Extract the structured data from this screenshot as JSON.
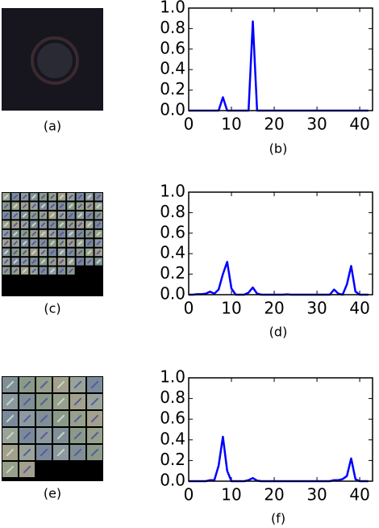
{
  "images": [
    {
      "caption": "(a)"
    },
    {
      "caption": "(c)"
    },
    {
      "caption": "(e)"
    }
  ],
  "chart_data": [
    {
      "type": "line",
      "caption": "(b)",
      "x": [
        0,
        1,
        2,
        3,
        4,
        5,
        6,
        7,
        8,
        9,
        10,
        11,
        12,
        13,
        14,
        15,
        16,
        17,
        18,
        19,
        20,
        21,
        22,
        23,
        24,
        25,
        26,
        27,
        28,
        29,
        30,
        31,
        32,
        33,
        34,
        35,
        36,
        37,
        38,
        39,
        40,
        41,
        42
      ],
      "series": [
        {
          "color": "#0000ff",
          "values": [
            0,
            0,
            0,
            0,
            0,
            0,
            0,
            0,
            0.13,
            0,
            0,
            0,
            0,
            0,
            0,
            0.87,
            0,
            0,
            0,
            0,
            0,
            0,
            0,
            0,
            0,
            0,
            0,
            0,
            0,
            0,
            0,
            0,
            0,
            0,
            0,
            0,
            0,
            0,
            0,
            0,
            0,
            0,
            0
          ]
        }
      ],
      "xlim": [
        0,
        43
      ],
      "ylim": [
        0,
        1
      ],
      "xticks": [
        0,
        10,
        20,
        30,
        40
      ],
      "yticks": [
        {
          "value": 0,
          "label": "0.0"
        },
        {
          "value": 0.2,
          "label": "0.2"
        },
        {
          "value": 0.4,
          "label": "0.4"
        },
        {
          "value": 0.6,
          "label": "0.6"
        },
        {
          "value": 0.8,
          "label": "0.8"
        },
        {
          "value": 1,
          "label": "1.0"
        }
      ]
    },
    {
      "type": "line",
      "caption": "(d)",
      "x": [
        0,
        1,
        2,
        3,
        4,
        5,
        6,
        7,
        8,
        9,
        10,
        11,
        12,
        13,
        14,
        15,
        16,
        17,
        18,
        19,
        20,
        21,
        22,
        23,
        24,
        25,
        26,
        27,
        28,
        29,
        30,
        31,
        32,
        33,
        34,
        35,
        36,
        37,
        38,
        39,
        40,
        41,
        42
      ],
      "series": [
        {
          "color": "#0000ff",
          "values": [
            0,
            0,
            0.005,
            0.005,
            0.01,
            0.03,
            0.01,
            0.05,
            0.2,
            0.32,
            0.06,
            0,
            0,
            0,
            0.02,
            0.07,
            0.01,
            0,
            0,
            0,
            0,
            0,
            0,
            0.003,
            0,
            0,
            0,
            0,
            0,
            0,
            0,
            0,
            0,
            0,
            0.05,
            0.01,
            0,
            0.1,
            0.28,
            0.03,
            0,
            0,
            0
          ]
        }
      ],
      "xlim": [
        0,
        43
      ],
      "ylim": [
        0,
        1
      ],
      "xticks": [
        0,
        10,
        20,
        30,
        40
      ],
      "yticks": [
        {
          "value": 0,
          "label": "0.0"
        },
        {
          "value": 0.2,
          "label": "0.2"
        },
        {
          "value": 0.4,
          "label": "0.4"
        },
        {
          "value": 0.6,
          "label": "0.6"
        },
        {
          "value": 0.8,
          "label": "0.8"
        },
        {
          "value": 1,
          "label": "1.0"
        }
      ]
    },
    {
      "type": "line",
      "caption": "(f)",
      "x": [
        0,
        1,
        2,
        3,
        4,
        5,
        6,
        7,
        8,
        9,
        10,
        11,
        12,
        13,
        14,
        15,
        16,
        17,
        18,
        19,
        20,
        21,
        22,
        23,
        24,
        25,
        26,
        27,
        28,
        29,
        30,
        31,
        32,
        33,
        34,
        35,
        36,
        37,
        38,
        39,
        40,
        41,
        42
      ],
      "series": [
        {
          "color": "#0000ff",
          "values": [
            0,
            0,
            0,
            0,
            0,
            0.01,
            0.01,
            0.15,
            0.43,
            0.1,
            0,
            0,
            0,
            0,
            0.01,
            0.03,
            0.005,
            0,
            0,
            0,
            0,
            0,
            0,
            0,
            0,
            0,
            0,
            0,
            0,
            0,
            0,
            0,
            0,
            0,
            0.01,
            0.01,
            0.02,
            0.05,
            0.22,
            0.02,
            0,
            0,
            0
          ]
        }
      ],
      "xlim": [
        0,
        43
      ],
      "ylim": [
        0,
        1
      ],
      "xticks": [
        0,
        10,
        20,
        30,
        40
      ],
      "yticks": [
        {
          "value": 0,
          "label": "0.0"
        },
        {
          "value": 0.2,
          "label": "0.2"
        },
        {
          "value": 0.4,
          "label": "0.4"
        },
        {
          "value": 0.6,
          "label": "0.6"
        },
        {
          "value": 0.8,
          "label": "0.8"
        },
        {
          "value": 1,
          "label": "1.0"
        }
      ]
    }
  ]
}
